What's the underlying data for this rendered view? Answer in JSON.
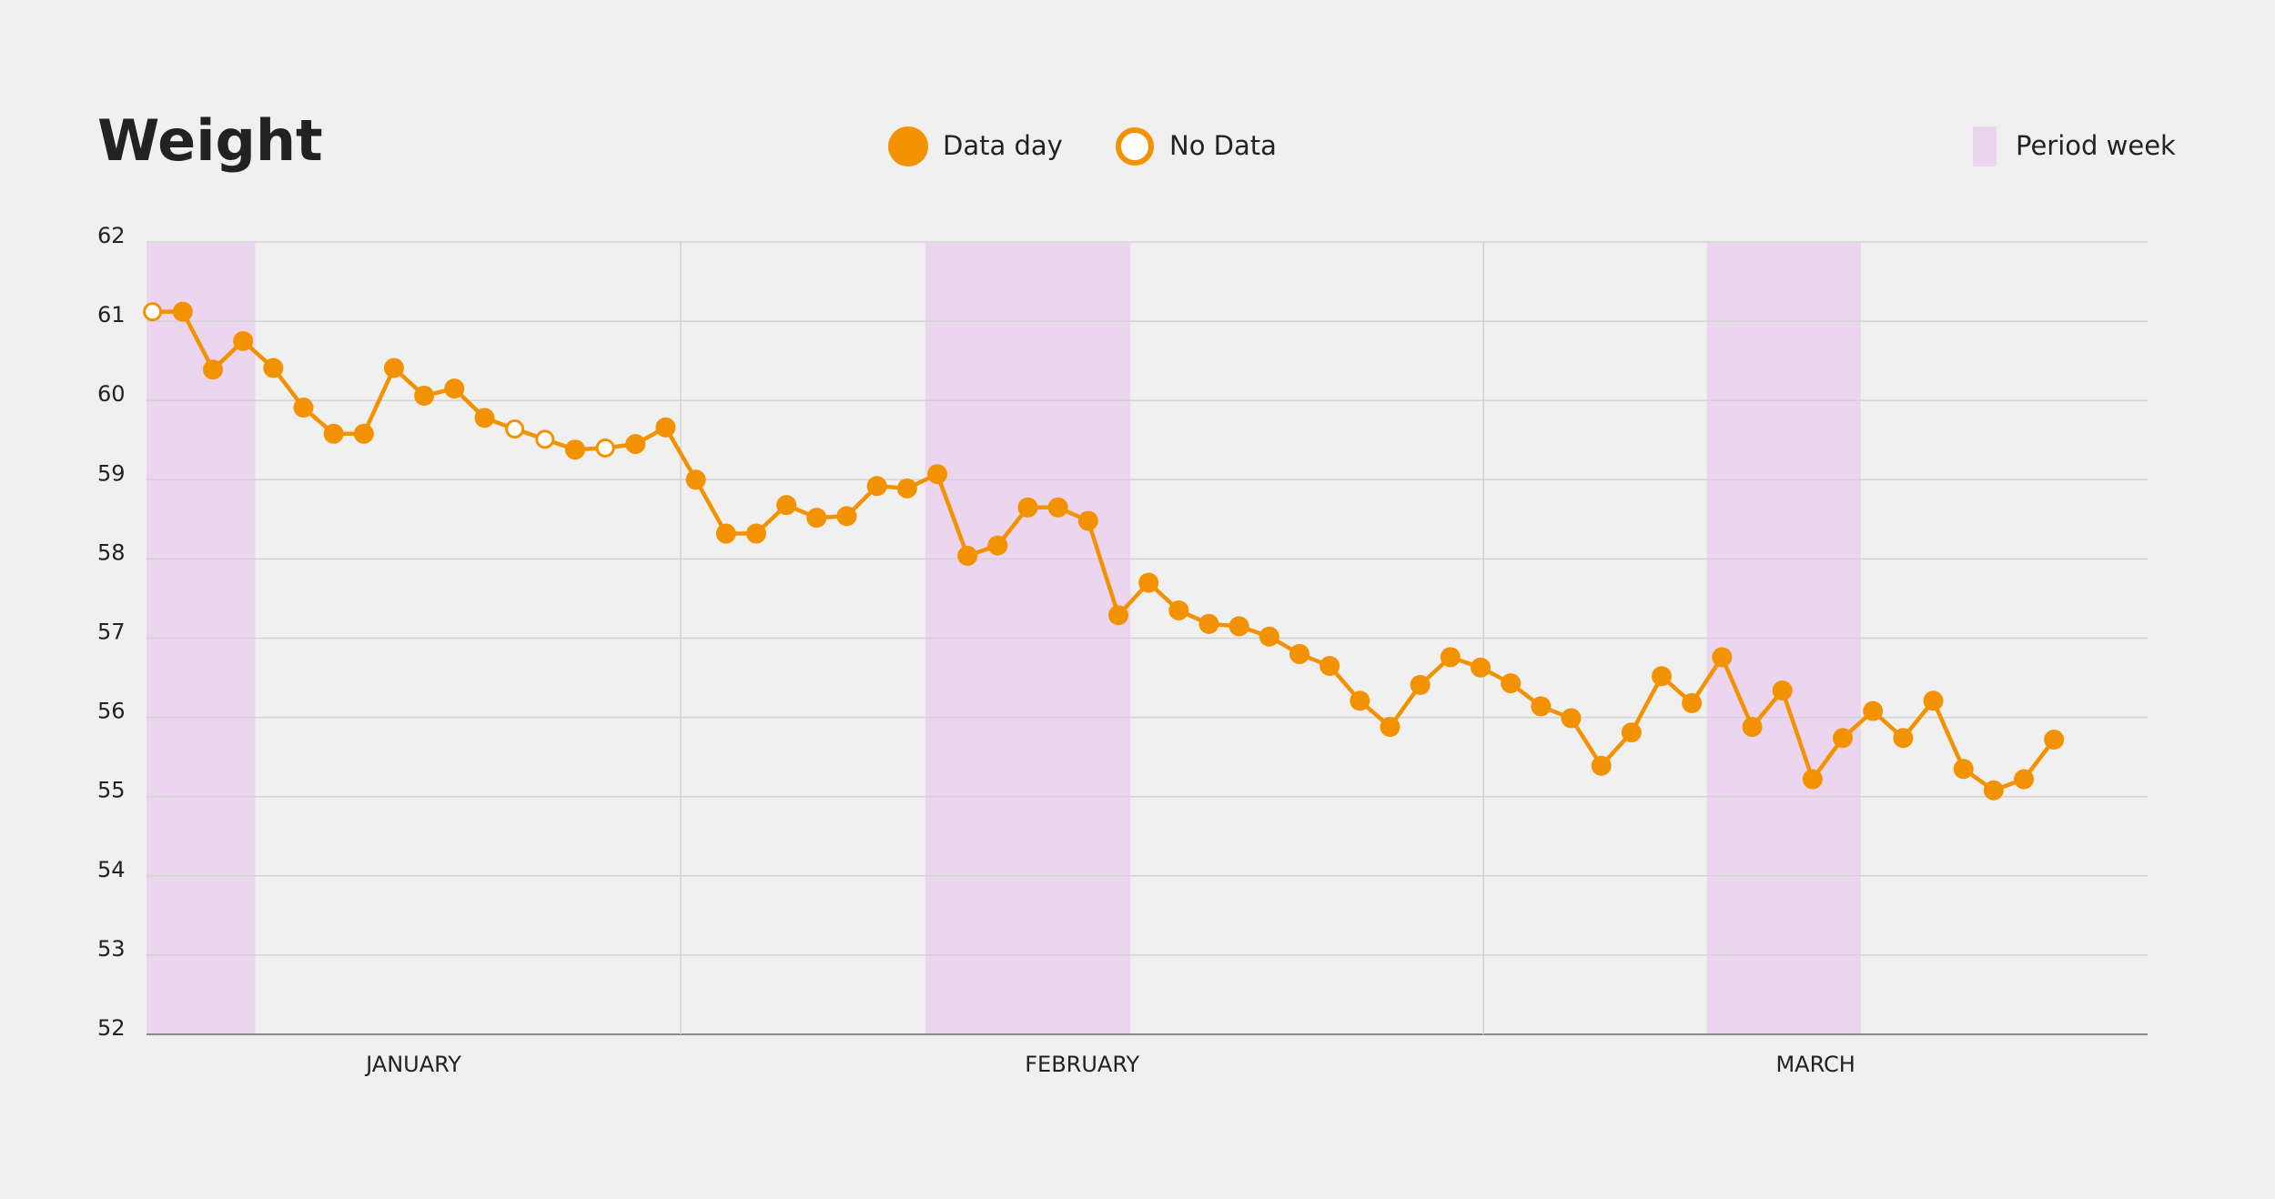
{
  "chart_data": {
    "type": "line",
    "title": "Weight",
    "x": [
      1,
      2,
      3,
      4,
      5,
      6,
      7,
      8,
      9,
      10,
      11,
      12,
      13,
      14,
      15,
      16,
      17,
      18,
      19,
      20,
      21,
      22,
      23,
      24,
      25,
      26,
      27,
      28,
      29,
      30,
      31,
      32,
      33,
      34,
      35,
      36,
      37,
      38,
      39,
      40,
      41,
      42,
      43,
      44,
      45,
      46,
      47,
      48,
      49,
      50,
      51,
      52,
      53,
      54,
      55,
      56,
      57,
      58,
      59,
      60,
      61,
      62,
      63,
      64
    ],
    "series": [
      {
        "name": "Data day",
        "color": "#f39200",
        "filled": true,
        "values": [
          null,
          61.12,
          60.39,
          60.75,
          60.41,
          59.91,
          59.58,
          59.58,
          60.41,
          60.06,
          60.15,
          59.78,
          null,
          null,
          59.38,
          null,
          59.45,
          59.66,
          59.0,
          58.32,
          58.32,
          58.68,
          58.52,
          58.54,
          58.92,
          58.89,
          59.07,
          58.04,
          58.17,
          58.65,
          58.65,
          58.48,
          57.29,
          57.7,
          57.35,
          57.18,
          57.15,
          57.02,
          56.8,
          56.65,
          56.21,
          55.88,
          56.41,
          56.76,
          56.63,
          56.43,
          56.14,
          55.99,
          55.39,
          55.81,
          56.52,
          56.18,
          56.76,
          55.88,
          56.34,
          55.22,
          55.74,
          56.08,
          55.74,
          56.21,
          55.35,
          55.08,
          55.22,
          55.72
        ]
      },
      {
        "name": "No Data",
        "color": "#f39200",
        "filled": false,
        "values": [
          61.12,
          null,
          null,
          null,
          null,
          null,
          null,
          null,
          null,
          null,
          null,
          null,
          59.64,
          59.51,
          null,
          59.4,
          null,
          null,
          null,
          null,
          null,
          null,
          null,
          null,
          null,
          null,
          null,
          null,
          null,
          null,
          null,
          null,
          null,
          null,
          null,
          null,
          null,
          null,
          null,
          null,
          null,
          null,
          null,
          null,
          null,
          null,
          null,
          null,
          null,
          null,
          null,
          null,
          null,
          null,
          null,
          null,
          null,
          null,
          null,
          null,
          null,
          null,
          null,
          null
        ]
      }
    ],
    "xlim": [
      0.8,
      67.1
    ],
    "ylim": [
      52,
      62
    ],
    "yticks": [
      52,
      53,
      54,
      55,
      56,
      57,
      58,
      59,
      60,
      61,
      62
    ],
    "grid": true,
    "months": [
      {
        "label": "JANUARY",
        "range": [
          0.8,
          18.5
        ]
      },
      {
        "label": "FEBRUARY",
        "range": [
          18.5,
          45.1
        ]
      },
      {
        "label": "MARCH",
        "range": [
          45.1,
          67.1
        ]
      }
    ],
    "periods": {
      "name": "Period week",
      "color": "#ecd5ee",
      "ranges": [
        [
          0.8,
          4.4
        ],
        [
          26.6,
          33.4
        ],
        [
          52.5,
          57.6
        ]
      ]
    }
  }
}
